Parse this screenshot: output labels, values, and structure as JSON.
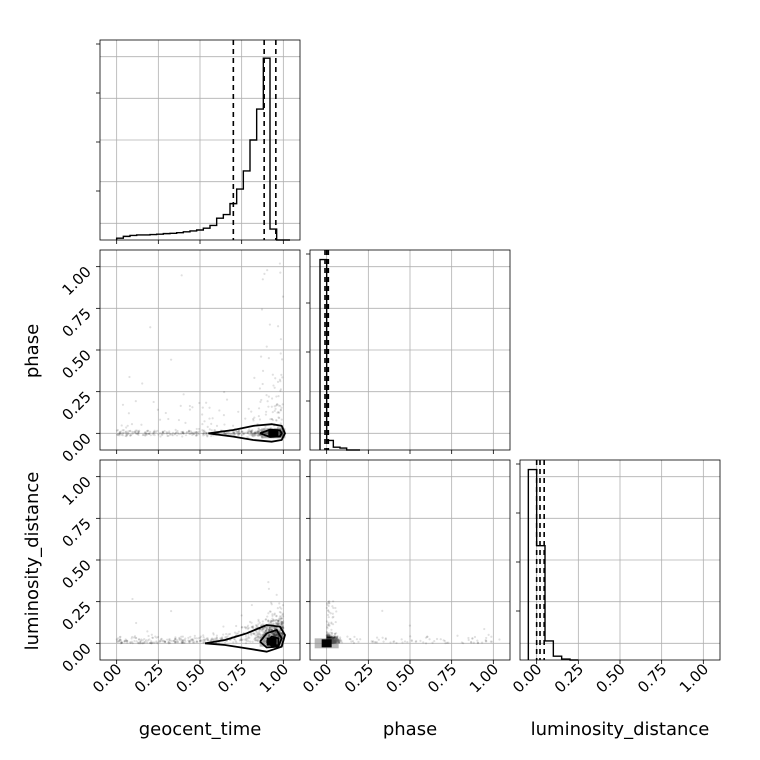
{
  "chart_data": {
    "type": "corner",
    "grid": true,
    "parameters": [
      "geocent_time",
      "phase",
      "luminosity_distance"
    ],
    "axis_range": [
      -0.1,
      1.1
    ],
    "tick_labels": [
      "0.00",
      "0.25",
      "0.50",
      "0.75",
      "1.00"
    ],
    "ticks": [
      0,
      0.25,
      0.5,
      0.75,
      1.0
    ],
    "diagonal": [
      {
        "parameter": "geocent_time",
        "quantiles": [
          0.7,
          0.885,
          0.955
        ],
        "hist_edges": [
          0.0,
          0.04,
          0.08,
          0.12,
          0.16,
          0.2,
          0.24,
          0.28,
          0.32,
          0.36,
          0.4,
          0.44,
          0.48,
          0.52,
          0.56,
          0.6,
          0.64,
          0.68,
          0.72,
          0.76,
          0.8,
          0.84,
          0.88,
          0.92,
          0.96,
          1.0,
          1.04
        ],
        "hist_counts": [
          0.01,
          0.02,
          0.025,
          0.028,
          0.028,
          0.03,
          0.032,
          0.035,
          0.037,
          0.04,
          0.045,
          0.05,
          0.055,
          0.065,
          0.08,
          0.12,
          0.14,
          0.2,
          0.28,
          0.38,
          0.55,
          0.72,
          1.0,
          0.06,
          0.0,
          0.0
        ],
        "ylim": [
          0,
          1.1
        ]
      },
      {
        "parameter": "phase",
        "quantiles": [
          -0.01,
          0.0,
          0.01
        ],
        "hist_edges": [
          -0.04,
          0.0,
          0.04,
          0.08,
          0.12,
          0.16,
          0.2
        ],
        "hist_counts": [
          1.0,
          0.05,
          0.015,
          0.01,
          0.0,
          0.0
        ],
        "ylim": [
          0,
          1.05
        ]
      },
      {
        "parameter": "luminosity_distance",
        "quantiles": [
          0.0,
          0.02,
          0.045
        ],
        "hist_edges": [
          -0.05,
          0.0,
          0.05,
          0.1,
          0.15,
          0.2,
          0.25
        ],
        "hist_counts": [
          1.0,
          0.6,
          0.1,
          0.02,
          0.005,
          0.0
        ],
        "ylim": [
          0,
          1.05
        ]
      }
    ],
    "scatter": [
      {
        "x": "geocent_time",
        "y": "phase",
        "core_peak": [
          0.94,
          0.0
        ],
        "contours": [
          [
            [
              0.55,
              0.0
            ],
            [
              0.7,
              0.02
            ],
            [
              0.82,
              0.045
            ],
            [
              0.93,
              0.055
            ],
            [
              0.99,
              0.045
            ],
            [
              1.01,
              0.0
            ],
            [
              0.99,
              -0.04
            ],
            [
              0.93,
              -0.05
            ],
            [
              0.82,
              -0.04
            ],
            [
              0.7,
              -0.02
            ],
            [
              0.55,
              0.0
            ]
          ],
          [
            [
              0.86,
              0.0
            ],
            [
              0.92,
              0.022
            ],
            [
              0.98,
              0.018
            ],
            [
              0.99,
              0.0
            ],
            [
              0.98,
              -0.018
            ],
            [
              0.92,
              -0.022
            ],
            [
              0.86,
              0.0
            ]
          ]
        ]
      },
      {
        "x": "geocent_time",
        "y": "luminosity_distance",
        "core_peak": [
          0.93,
          0.01
        ],
        "contours": [
          [
            [
              0.53,
              0.0
            ],
            [
              0.65,
              0.02
            ],
            [
              0.78,
              0.06
            ],
            [
              0.9,
              0.11
            ],
            [
              0.98,
              0.1
            ],
            [
              1.01,
              0.05
            ],
            [
              0.99,
              -0.02
            ],
            [
              0.9,
              -0.05
            ],
            [
              0.78,
              -0.03
            ],
            [
              0.65,
              -0.01
            ],
            [
              0.53,
              0.0
            ]
          ],
          [
            [
              0.86,
              0.01
            ],
            [
              0.9,
              0.06
            ],
            [
              0.96,
              0.08
            ],
            [
              0.99,
              0.03
            ],
            [
              0.97,
              -0.02
            ],
            [
              0.9,
              -0.025
            ],
            [
              0.86,
              0.01
            ]
          ],
          [
            [
              0.9,
              0.01
            ],
            [
              0.93,
              0.04
            ],
            [
              0.97,
              0.03
            ],
            [
              0.97,
              -0.01
            ],
            [
              0.93,
              -0.015
            ],
            [
              0.9,
              0.01
            ]
          ]
        ]
      },
      {
        "x": "phase",
        "y": "luminosity_distance",
        "core_peak": [
          0.0,
          0.0
        ],
        "contours": []
      }
    ]
  }
}
